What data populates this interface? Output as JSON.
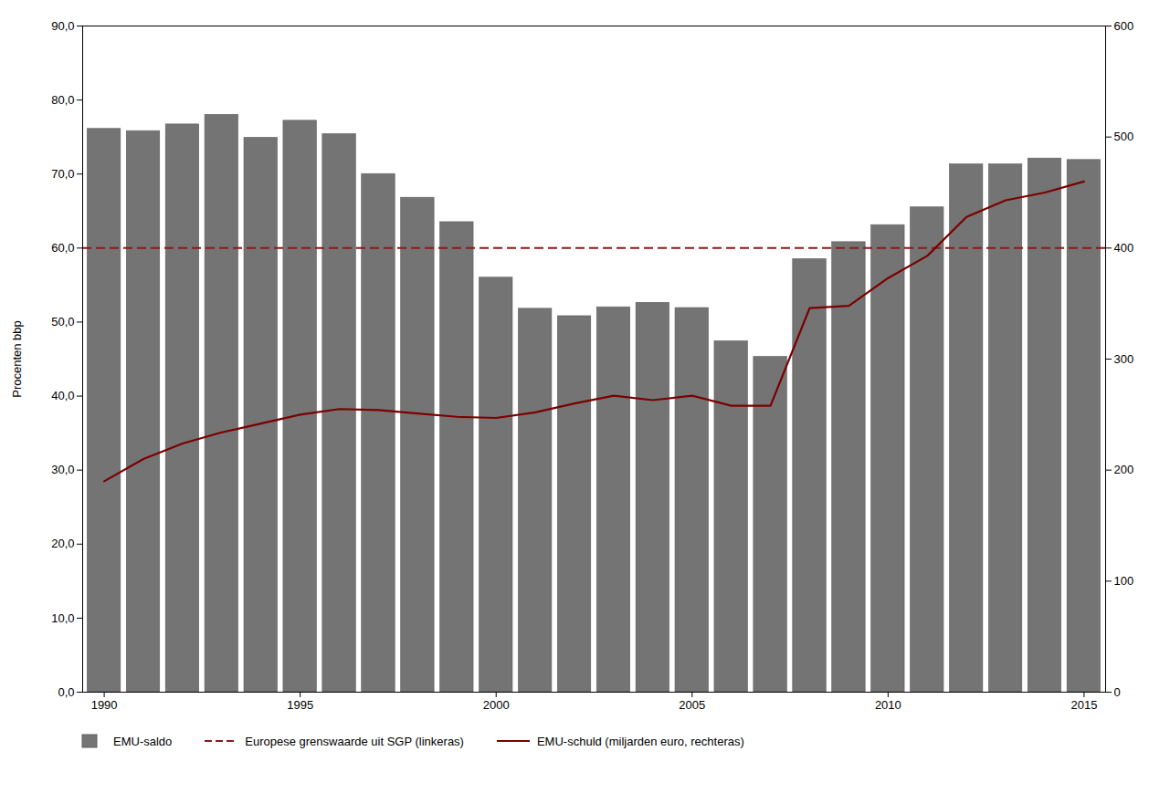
{
  "chart_data": {
    "type": "bar",
    "x": [
      1990,
      1991,
      1992,
      1993,
      1994,
      1995,
      1996,
      1997,
      1998,
      1999,
      2000,
      2001,
      2002,
      2003,
      2004,
      2005,
      2006,
      2007,
      2008,
      2009,
      2010,
      2011,
      2012,
      2013,
      2014,
      2015
    ],
    "series": [
      {
        "name": "EMU-saldo",
        "type": "bar",
        "color": "#747474",
        "values": [
          76.1,
          75.8,
          76.7,
          78.0,
          74.9,
          77.2,
          75.4,
          70.0,
          66.8,
          63.5,
          56.0,
          51.8,
          50.8,
          52.0,
          52.6,
          51.9,
          47.4,
          45.3,
          58.5,
          60.8,
          63.1,
          65.5,
          71.3,
          71.3,
          72.1,
          71.9
        ]
      },
      {
        "name": "Europese grenswaarde uit SGP (linkeras)",
        "type": "hline",
        "color": "#8B1A1A",
        "line_style": "dashed",
        "value": 60.0
      },
      {
        "name": "EMU-schuld (miljarden euro, rechteras)",
        "type": "line",
        "axis": "y2",
        "color": "#7B0000",
        "line_style": "solid",
        "values": [
          190,
          210,
          224,
          234,
          242,
          250,
          255,
          254,
          251,
          248,
          247,
          252,
          260,
          267,
          263,
          267,
          258,
          258,
          346,
          348,
          373,
          393,
          428,
          443,
          450,
          460
        ]
      }
    ],
    "ylabel": "Procenten bbp",
    "xlim": [
      1989.45,
      2015.55
    ],
    "xticks": [
      1990,
      1995,
      2000,
      2005,
      2010,
      2015
    ],
    "ylim": [
      0,
      90
    ],
    "yticks": [
      {
        "value": 0,
        "label": "0,0"
      },
      {
        "value": 10,
        "label": "10,0"
      },
      {
        "value": 20,
        "label": "20,0"
      },
      {
        "value": 30,
        "label": "30,0"
      },
      {
        "value": 40,
        "label": "40,0"
      },
      {
        "value": 50,
        "label": "50,0"
      },
      {
        "value": 60,
        "label": "60,0"
      },
      {
        "value": 70,
        "label": "70,0"
      },
      {
        "value": 80,
        "label": "80,0"
      },
      {
        "value": 90,
        "label": "90,0"
      }
    ],
    "y2lim": [
      0,
      600
    ],
    "y2ticks": [
      0,
      100,
      200,
      300,
      400,
      500,
      600
    ],
    "grid": false,
    "legend": "bottom"
  }
}
